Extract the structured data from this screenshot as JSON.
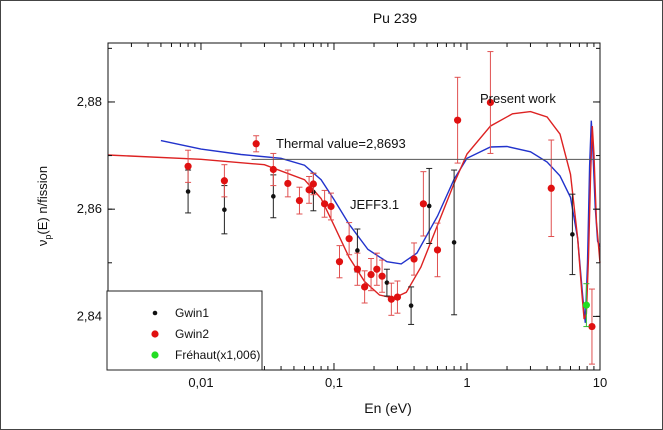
{
  "chart_data": {
    "type": "scatter",
    "title": "Pu 239",
    "xlabel": "En (eV)",
    "ylabel_main": "ν",
    "ylabel_sub": "p",
    "ylabel_rest": "(E) n/fission",
    "x_scale": "log",
    "xlim": [
      0.002,
      10
    ],
    "ylim": [
      2.83,
      2.891
    ],
    "x_ticks": [
      {
        "value": 0.01,
        "label": "0,01"
      },
      {
        "value": 0.1,
        "label": "0,1"
      },
      {
        "value": 1,
        "label": "1"
      },
      {
        "value": 10,
        "label": "10"
      }
    ],
    "y_ticks": [
      {
        "value": 2.84,
        "label": "2,84"
      },
      {
        "value": 2.86,
        "label": "2,86"
      },
      {
        "value": 2.88,
        "label": "2,88"
      }
    ],
    "grid": false,
    "legend_position": "bottom-left",
    "thermal_value": 2.8693,
    "annotations": {
      "thermal": "Thermal value=2,8693",
      "jeff": "JEFF3.1",
      "present": "Present work"
    },
    "series": [
      {
        "name": "Gwin1",
        "kind": "points",
        "color": "#111111",
        "points": [
          {
            "x": 0.008,
            "y": 2.8633,
            "err": 0.004
          },
          {
            "x": 0.015,
            "y": 2.8599,
            "err": 0.0045
          },
          {
            "x": 0.035,
            "y": 2.8624,
            "err": 0.004
          },
          {
            "x": 0.07,
            "y": 2.8632,
            "err": 0.0035
          },
          {
            "x": 0.15,
            "y": 2.8523,
            "err": 0.004
          },
          {
            "x": 0.25,
            "y": 2.8463,
            "err": 0.0025
          },
          {
            "x": 0.38,
            "y": 2.842,
            "err": 0.0035
          },
          {
            "x": 0.52,
            "y": 2.8606,
            "err": 0.007
          },
          {
            "x": 0.8,
            "y": 2.8538,
            "err": 0.0135
          },
          {
            "x": 6.2,
            "y": 2.8553,
            "err": 0.0075
          }
        ]
      },
      {
        "name": "Gwin2",
        "kind": "points",
        "color": "#e01010",
        "points": [
          {
            "x": 0.008,
            "y": 2.868,
            "err": 0.003
          },
          {
            "x": 0.015,
            "y": 2.8653,
            "err": 0.003
          },
          {
            "x": 0.026,
            "y": 2.8722,
            "err": 0.0015
          },
          {
            "x": 0.035,
            "y": 2.8674,
            "err": 0.003
          },
          {
            "x": 0.045,
            "y": 2.8648,
            "err": 0.0025
          },
          {
            "x": 0.055,
            "y": 2.8616,
            "err": 0.0025
          },
          {
            "x": 0.065,
            "y": 2.8636,
            "err": 0.0025
          },
          {
            "x": 0.07,
            "y": 2.8647,
            "err": 0.002
          },
          {
            "x": 0.085,
            "y": 2.861,
            "err": 0.0025
          },
          {
            "x": 0.095,
            "y": 2.8605,
            "err": 0.0025
          },
          {
            "x": 0.11,
            "y": 2.8502,
            "err": 0.003
          },
          {
            "x": 0.13,
            "y": 2.8545,
            "err": 0.003
          },
          {
            "x": 0.15,
            "y": 2.8488,
            "err": 0.003
          },
          {
            "x": 0.17,
            "y": 2.8455,
            "err": 0.003
          },
          {
            "x": 0.19,
            "y": 2.8478,
            "err": 0.003
          },
          {
            "x": 0.21,
            "y": 2.8488,
            "err": 0.003
          },
          {
            "x": 0.23,
            "y": 2.8475,
            "err": 0.003
          },
          {
            "x": 0.27,
            "y": 2.8432,
            "err": 0.003
          },
          {
            "x": 0.3,
            "y": 2.8436,
            "err": 0.003
          },
          {
            "x": 0.4,
            "y": 2.8507,
            "err": 0.003
          },
          {
            "x": 0.47,
            "y": 2.861,
            "err": 0.006
          },
          {
            "x": 0.6,
            "y": 2.8524,
            "err": 0.005
          },
          {
            "x": 0.85,
            "y": 2.8766,
            "err": 0.008
          },
          {
            "x": 1.5,
            "y": 2.8799,
            "err": 0.0095
          },
          {
            "x": 4.3,
            "y": 2.8639,
            "err": 0.009
          },
          {
            "x": 8.7,
            "y": 2.8381,
            "err": 0.007
          }
        ]
      },
      {
        "name": "Fréhaut(x1,006)",
        "kind": "points",
        "color": "#22dd22",
        "points": [
          {
            "x": 7.9,
            "y": 2.8421,
            "err": 0.004
          }
        ]
      },
      {
        "name": "",
        "kind": "line",
        "color": "#2233cc",
        "points": [
          {
            "x": 0.005,
            "y": 2.8728
          },
          {
            "x": 0.01,
            "y": 2.8712
          },
          {
            "x": 0.02,
            "y": 2.8702
          },
          {
            "x": 0.04,
            "y": 2.8695
          },
          {
            "x": 0.06,
            "y": 2.8682
          },
          {
            "x": 0.08,
            "y": 2.8655
          },
          {
            "x": 0.1,
            "y": 2.8618
          },
          {
            "x": 0.13,
            "y": 2.8572
          },
          {
            "x": 0.18,
            "y": 2.8525
          },
          {
            "x": 0.25,
            "y": 2.8502
          },
          {
            "x": 0.32,
            "y": 2.8498
          },
          {
            "x": 0.42,
            "y": 2.8518
          },
          {
            "x": 0.6,
            "y": 2.8587
          },
          {
            "x": 0.8,
            "y": 2.8656
          },
          {
            "x": 1.0,
            "y": 2.8695
          },
          {
            "x": 1.5,
            "y": 2.8716
          },
          {
            "x": 2.0,
            "y": 2.8717
          },
          {
            "x": 3.0,
            "y": 2.8707
          },
          {
            "x": 4.0,
            "y": 2.8688
          },
          {
            "x": 5.0,
            "y": 2.8662
          },
          {
            "x": 6.0,
            "y": 2.8622
          },
          {
            "x": 6.8,
            "y": 2.8545
          },
          {
            "x": 7.4,
            "y": 2.844
          },
          {
            "x": 7.75,
            "y": 2.8388
          },
          {
            "x": 8.05,
            "y": 2.85
          },
          {
            "x": 8.35,
            "y": 2.868
          },
          {
            "x": 8.6,
            "y": 2.8765
          },
          {
            "x": 8.85,
            "y": 2.8708
          },
          {
            "x": 9.2,
            "y": 2.8605
          },
          {
            "x": 9.6,
            "y": 2.854
          },
          {
            "x": 10.0,
            "y": 2.853
          }
        ]
      },
      {
        "name": "",
        "kind": "line",
        "color": "#dd2222",
        "points": [
          {
            "x": 0.002,
            "y": 2.8701
          },
          {
            "x": 0.01,
            "y": 2.8693
          },
          {
            "x": 0.03,
            "y": 2.8683
          },
          {
            "x": 0.06,
            "y": 2.8655
          },
          {
            "x": 0.08,
            "y": 2.862
          },
          {
            "x": 0.1,
            "y": 2.857
          },
          {
            "x": 0.13,
            "y": 2.851
          },
          {
            "x": 0.17,
            "y": 2.8465
          },
          {
            "x": 0.22,
            "y": 2.844
          },
          {
            "x": 0.28,
            "y": 2.8434
          },
          {
            "x": 0.35,
            "y": 2.8445
          },
          {
            "x": 0.45,
            "y": 2.8492
          },
          {
            "x": 0.6,
            "y": 2.857
          },
          {
            "x": 0.8,
            "y": 2.8648
          },
          {
            "x": 1.0,
            "y": 2.8703
          },
          {
            "x": 1.5,
            "y": 2.8755
          },
          {
            "x": 2.2,
            "y": 2.8778
          },
          {
            "x": 3.0,
            "y": 2.8782
          },
          {
            "x": 4.0,
            "y": 2.8772
          },
          {
            "x": 5.0,
            "y": 2.874
          },
          {
            "x": 6.0,
            "y": 2.8665
          },
          {
            "x": 6.8,
            "y": 2.8545
          },
          {
            "x": 7.3,
            "y": 2.8445
          },
          {
            "x": 7.6,
            "y": 2.8395
          },
          {
            "x": 7.9,
            "y": 2.8405
          },
          {
            "x": 8.2,
            "y": 2.851
          },
          {
            "x": 8.5,
            "y": 2.8665
          },
          {
            "x": 8.75,
            "y": 2.8755
          },
          {
            "x": 9.0,
            "y": 2.8705
          },
          {
            "x": 9.4,
            "y": 2.8578
          },
          {
            "x": 10.0,
            "y": 2.85
          }
        ]
      }
    ]
  }
}
